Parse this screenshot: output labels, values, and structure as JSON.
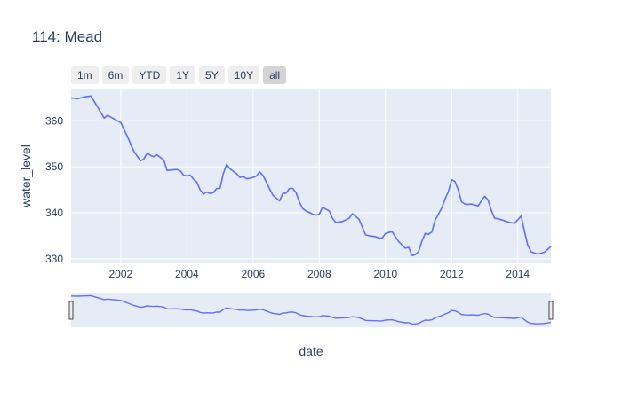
{
  "title": "114: Mead",
  "range_buttons": [
    {
      "label": "1m",
      "active": false
    },
    {
      "label": "6m",
      "active": false
    },
    {
      "label": "YTD",
      "active": false
    },
    {
      "label": "1Y",
      "active": false
    },
    {
      "label": "5Y",
      "active": false
    },
    {
      "label": "10Y",
      "active": false
    },
    {
      "label": "all",
      "active": true
    }
  ],
  "colors": {
    "plot_bg": "#e5ecf6",
    "line": "#636efa",
    "grid": "#ffffff",
    "rangeslider_bg": "#e5ecf6"
  },
  "chart_data": {
    "type": "line",
    "title": "114: Mead",
    "xlabel": "date",
    "ylabel": "water_level",
    "xlim": [
      2000.5,
      2015.0
    ],
    "ylim": [
      329,
      367
    ],
    "x_ticks": [
      2002,
      2004,
      2006,
      2008,
      2010,
      2012,
      2014
    ],
    "y_ticks": [
      330,
      340,
      350,
      360
    ],
    "grid": true,
    "rangeslider": true,
    "series": [
      {
        "name": "",
        "x": [
          2000.5,
          2000.7,
          2000.9,
          2001.1,
          2001.3,
          2001.5,
          2001.6,
          2001.8,
          2002.0,
          2002.2,
          2002.4,
          2002.6,
          2002.7,
          2002.8,
          2002.9,
          2003.0,
          2003.1,
          2003.3,
          2003.4,
          2003.5,
          2003.7,
          2003.8,
          2003.9,
          2004.0,
          2004.1,
          2004.2,
          2004.3,
          2004.4,
          2004.5,
          2004.6,
          2004.7,
          2004.8,
          2004.9,
          2005.0,
          2005.1,
          2005.2,
          2005.3,
          2005.4,
          2005.5,
          2005.6,
          2005.7,
          2005.8,
          2005.9,
          2006.0,
          2006.1,
          2006.2,
          2006.3,
          2006.4,
          2006.5,
          2006.6,
          2006.7,
          2006.8,
          2006.9,
          2007.0,
          2007.1,
          2007.2,
          2007.3,
          2007.4,
          2007.5,
          2007.6,
          2007.8,
          2007.9,
          2008.0,
          2008.1,
          2008.3,
          2008.4,
          2008.5,
          2008.7,
          2008.9,
          2009.0,
          2009.2,
          2009.4,
          2009.5,
          2009.7,
          2009.8,
          2009.9,
          2010.0,
          2010.2,
          2010.4,
          2010.6,
          2010.7,
          2010.8,
          2010.9,
          2011.0,
          2011.1,
          2011.2,
          2011.3,
          2011.4,
          2011.5,
          2011.7,
          2011.8,
          2011.9,
          2012.0,
          2012.1,
          2012.2,
          2012.3,
          2012.4,
          2012.5,
          2012.6,
          2012.8,
          2012.9,
          2013.0,
          2013.1,
          2013.2,
          2013.3,
          2013.4,
          2013.5,
          2013.7,
          2013.9,
          2014.0,
          2014.1,
          2014.2,
          2014.3,
          2014.4,
          2014.6,
          2014.8,
          2014.9,
          2015.0
        ],
        "y": [
          365,
          364.8,
          365.2,
          365.4,
          363,
          360.6,
          361.2,
          360.4,
          359.6,
          356.6,
          353.3,
          351.3,
          351.7,
          353.0,
          352.5,
          352.2,
          352.6,
          351.5,
          349.2,
          349.3,
          349.4,
          349.1,
          348.2,
          348.0,
          348.2,
          347.3,
          346.7,
          345.0,
          344.1,
          344.5,
          344.2,
          344.4,
          345.3,
          345.3,
          348.5,
          350.5,
          349.6,
          349.0,
          348.5,
          347.7,
          347.9,
          347.4,
          347.5,
          347.7,
          348.0,
          348.9,
          348.1,
          346.7,
          345.2,
          343.8,
          343.2,
          342.6,
          344.2,
          344.3,
          345.3,
          345.3,
          344.4,
          342.3,
          340.9,
          340.4,
          339.7,
          339.5,
          339.7,
          341.2,
          340.4,
          338.8,
          337.9,
          338.1,
          338.8,
          339.8,
          338.6,
          335.2,
          335.0,
          334.8,
          334.5,
          334.5,
          335.5,
          335.9,
          333.7,
          332.3,
          332.5,
          330.7,
          330.9,
          331.5,
          333.8,
          335.5,
          335.3,
          335.8,
          338.4,
          341.0,
          343.0,
          344.6,
          347.2,
          346.8,
          345.0,
          342.4,
          341.9,
          341.8,
          341.9,
          341.5,
          342.6,
          343.6,
          342.8,
          340.5,
          338.8,
          338.7,
          338.5,
          338.0,
          337.7,
          338.5,
          339.3,
          336.0,
          333.0,
          331.5,
          331.0,
          331.4,
          332.0,
          332.7
        ]
      }
    ]
  }
}
